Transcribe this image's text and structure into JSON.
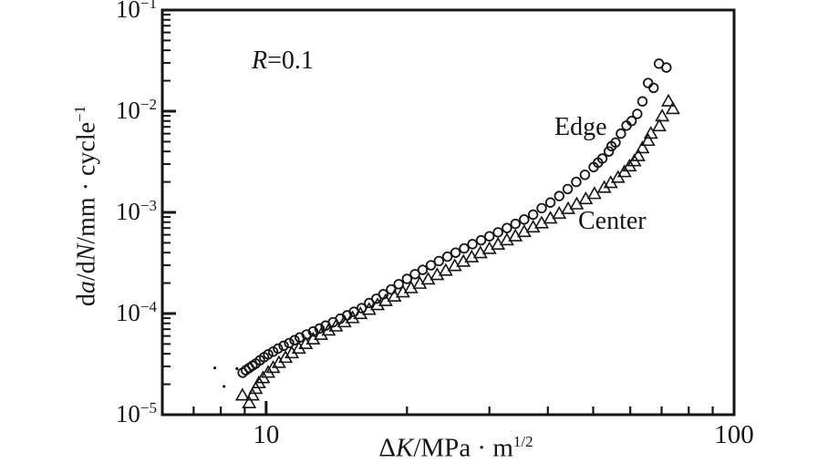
{
  "figure": {
    "background": "#ffffff",
    "ink": "#151515"
  },
  "annotation": {
    "italic": "R",
    "text": "=0.1"
  },
  "chart_data": {
    "type": "scatter",
    "title": "",
    "grid": false,
    "legend_position": "inline-labels",
    "x_axis": {
      "scale": "log",
      "min": 6,
      "max": 100,
      "label_plain": "ΔK/MPa·m^(1/2)",
      "title_parts": [
        {
          "t": "Δ"
        },
        {
          "t": "K",
          "italic": true
        },
        {
          "t": "/MPa · m"
        },
        {
          "t": "1/2",
          "sup": true
        }
      ],
      "labeled_ticks": [
        10,
        100
      ],
      "minor_ticks": [
        7,
        8,
        9,
        20,
        30,
        40,
        50,
        60,
        70,
        80,
        90
      ]
    },
    "y_axis": {
      "scale": "log",
      "min": 1e-05,
      "max": 0.1,
      "label_plain": "da/dN/mm·cycle^(-1)",
      "title_parts": [
        {
          "t": "d"
        },
        {
          "t": "a",
          "italic": true
        },
        {
          "t": "/d"
        },
        {
          "t": "N",
          "italic": true
        },
        {
          "t": "/mm · cycle"
        },
        {
          "t": "-1",
          "sup": true
        }
      ],
      "tick_label_base": "10",
      "tick_exponents": [
        -1,
        -2,
        -3,
        -4,
        -5
      ]
    },
    "series": [
      {
        "name": "Edge",
        "marker": "circle",
        "points": [
          [
            8.91,
            2.6e-05
          ],
          [
            9.05,
            2.75e-05
          ],
          [
            9.2,
            2.9e-05
          ],
          [
            9.35,
            3.05e-05
          ],
          [
            9.5,
            3.2e-05
          ],
          [
            9.7,
            3.45e-05
          ],
          [
            9.9,
            3.7e-05
          ],
          [
            10.1,
            3.95e-05
          ],
          [
            10.35,
            4.2e-05
          ],
          [
            10.6,
            4.5e-05
          ],
          [
            10.9,
            4.8e-05
          ],
          [
            11.2,
            5.1e-05
          ],
          [
            11.5,
            5.45e-05
          ],
          [
            11.8,
            5.8e-05
          ],
          [
            12.2,
            6.2e-05
          ],
          [
            12.6,
            6.65e-05
          ],
          [
            13.0,
            7.1e-05
          ],
          [
            13.4,
            7.6e-05
          ],
          [
            13.9,
            8.2e-05
          ],
          [
            14.4,
            8.9e-05
          ],
          [
            14.9,
            9.6e-05
          ],
          [
            15.4,
            0.000104
          ],
          [
            16.0,
            0.000113
          ],
          [
            16.6,
            0.000127
          ],
          [
            17.2,
            0.00014
          ],
          [
            17.8,
            0.000155
          ],
          [
            18.5,
            0.000173
          ],
          [
            19.2,
            0.000195
          ],
          [
            20.0,
            0.00022
          ],
          [
            20.8,
            0.000245
          ],
          [
            21.6,
            0.00027
          ],
          [
            22.5,
            0.0003
          ],
          [
            23.4,
            0.00033
          ],
          [
            24.4,
            0.000365
          ],
          [
            25.4,
            0.0004
          ],
          [
            26.5,
            0.00044
          ],
          [
            27.6,
            0.000485
          ],
          [
            28.8,
            0.00053
          ],
          [
            30.0,
            0.00058
          ],
          [
            31.3,
            0.000635
          ],
          [
            32.7,
            0.0007
          ],
          [
            34.1,
            0.00077
          ],
          [
            35.6,
            0.00085
          ],
          [
            37.2,
            0.00095
          ],
          [
            38.8,
            0.0011
          ],
          [
            40.5,
            0.00125
          ],
          [
            42.3,
            0.00145
          ],
          [
            44.1,
            0.0017
          ],
          [
            46.0,
            0.002
          ],
          [
            48.0,
            0.00235
          ],
          [
            50.1,
            0.0028
          ],
          [
            51.2,
            0.0031
          ],
          [
            52.3,
            0.0034
          ],
          [
            54.0,
            0.004
          ],
          [
            54.7,
            0.0045
          ],
          [
            55.8,
            0.0049
          ],
          [
            57.3,
            0.006
          ],
          [
            58.9,
            0.0072
          ],
          [
            60.4,
            0.008
          ],
          [
            62.1,
            0.0094
          ],
          [
            63.7,
            0.0125
          ],
          [
            67.3,
            0.017
          ],
          [
            65.5,
            0.019
          ],
          [
            69.1,
            0.0295
          ],
          [
            71.7,
            0.027
          ]
        ]
      },
      {
        "name": "Center",
        "marker": "triangle",
        "points": [
          [
            8.9,
            1.55e-05
          ],
          [
            9.2,
            1.3e-05
          ],
          [
            9.35,
            1.55e-05
          ],
          [
            9.5,
            1.8e-05
          ],
          [
            9.65,
            2.05e-05
          ],
          [
            9.85,
            2.3e-05
          ],
          [
            10.1,
            2.6e-05
          ],
          [
            10.35,
            2.9e-05
          ],
          [
            10.65,
            3.25e-05
          ],
          [
            11.0,
            3.65e-05
          ],
          [
            11.35,
            4.05e-05
          ],
          [
            11.75,
            4.5e-05
          ],
          [
            12.15,
            5e-05
          ],
          [
            12.6,
            5.55e-05
          ],
          [
            13.1,
            6.15e-05
          ],
          [
            13.6,
            6.8e-05
          ],
          [
            14.1,
            7.45e-05
          ],
          [
            14.7,
            8.2e-05
          ],
          [
            15.3,
            9e-05
          ],
          [
            15.9,
            9.9e-05
          ],
          [
            16.6,
            0.000109
          ],
          [
            17.3,
            0.000121
          ],
          [
            18.0,
            0.000133
          ],
          [
            18.8,
            0.000147
          ],
          [
            19.6,
            0.000162
          ],
          [
            20.4,
            0.000178
          ],
          [
            21.3,
            0.000197
          ],
          [
            22.2,
            0.000217
          ],
          [
            23.2,
            0.00024
          ],
          [
            24.2,
            0.000265
          ],
          [
            25.3,
            0.000295
          ],
          [
            26.4,
            0.000325
          ],
          [
            27.5,
            0.00036
          ],
          [
            28.7,
            0.000395
          ],
          [
            30.0,
            0.000435
          ],
          [
            31.3,
            0.00048
          ],
          [
            32.7,
            0.00053
          ],
          [
            34.1,
            0.00058
          ],
          [
            35.6,
            0.00064
          ],
          [
            37.2,
            0.00071
          ],
          [
            38.8,
            0.00078
          ],
          [
            40.5,
            0.00087
          ],
          [
            42.3,
            0.00097
          ],
          [
            44.2,
            0.00108
          ],
          [
            46.1,
            0.0012
          ],
          [
            48.2,
            0.00135
          ],
          [
            50.3,
            0.00152
          ],
          [
            52.8,
            0.00175
          ],
          [
            54.5,
            0.00195
          ],
          [
            56.5,
            0.0022
          ],
          [
            58.3,
            0.0025
          ],
          [
            59.8,
            0.00285
          ],
          [
            61.2,
            0.0032
          ],
          [
            62.4,
            0.0036
          ],
          [
            63.7,
            0.0043
          ],
          [
            65.5,
            0.0051
          ],
          [
            66.4,
            0.006
          ],
          [
            69.2,
            0.0071
          ],
          [
            70.2,
            0.0089
          ],
          [
            74.0,
            0.0105
          ],
          [
            72.4,
            0.0125
          ]
        ]
      }
    ],
    "stray_points": [
      [
        7.77,
        2.9e-05
      ],
      [
        8.13,
        1.9e-05
      ],
      [
        8.66,
        2.85e-05
      ]
    ]
  }
}
